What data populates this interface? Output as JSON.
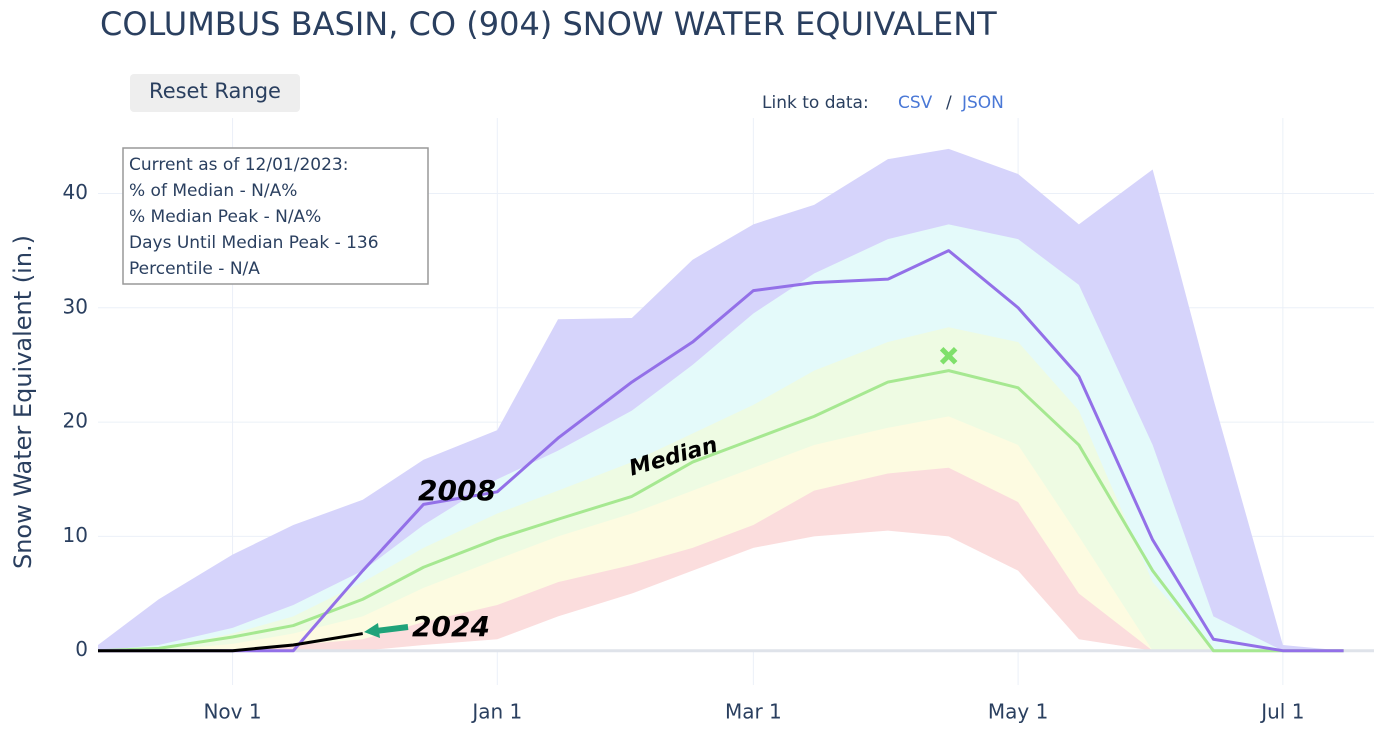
{
  "title": "COLUMBUS BASIN, CO (904) SNOW WATER EQUIVALENT",
  "button": "Reset Range",
  "links": {
    "label": "Link to data:",
    "csv": "CSV",
    "separator": "/",
    "json": "JSON"
  },
  "info_box": [
    "Current as of 12/01/2023:",
    "% of Median - N/A%",
    "% Median Peak - N/A%",
    "Days Until Median Peak - 136",
    "Percentile - N/A"
  ],
  "chart_data": {
    "type": "line",
    "y_label": "Snow Water Equivalent (in.)",
    "x": [
      "Oct 1",
      "Oct 15",
      "Nov 1",
      "Nov 15",
      "Dec 1",
      "Dec 15",
      "Jan 1",
      "Jan 15",
      "Feb 1",
      "Feb 15",
      "Mar 1",
      "Mar 15",
      "Apr 1",
      "Apr 15",
      "May 1",
      "May 15",
      "Jun 1",
      "Jun 15",
      "Jul 1",
      "Jul 15"
    ],
    "xlim": [
      "Oct 1",
      "Jul 22"
    ],
    "xticks": [
      "Nov 1",
      "Jan 1",
      "Mar 1",
      "May 1",
      "Jul 1"
    ],
    "ylim": [
      -3,
      46.6
    ],
    "yticks": [
      0,
      10,
      20,
      30,
      40
    ],
    "grid": true,
    "bands": [
      {
        "color": "#d6d4fb",
        "values": [
          0.5,
          4.5,
          8.4,
          11,
          13.2,
          16.7,
          19.3,
          29,
          29.1,
          34.2,
          37.3,
          39,
          43,
          43.9,
          41.7,
          37.3,
          42.1,
          22,
          0.5,
          0
        ]
      },
      {
        "color": "#e4fafa",
        "values": [
          0,
          0.5,
          2,
          4,
          7,
          11,
          15,
          17.5,
          21,
          25,
          29.5,
          33,
          36,
          37.3,
          36,
          32,
          18,
          3,
          0,
          0
        ]
      },
      {
        "color": "#eefbe3",
        "values": [
          0,
          0.2,
          1.5,
          3,
          6,
          9,
          12,
          14,
          16.5,
          19,
          21.5,
          24.5,
          27,
          28.3,
          27,
          21,
          6,
          0,
          0,
          0
        ]
      },
      {
        "color": "#fdfbe1",
        "values": [
          0,
          0,
          0.6,
          1.5,
          3,
          5.5,
          8,
          10,
          12,
          14,
          16,
          18,
          19.5,
          20.5,
          18,
          10,
          0,
          0,
          0,
          0
        ]
      },
      {
        "color": "#fbdddd",
        "values": [
          0,
          0,
          0,
          0.5,
          1,
          2.5,
          4,
          6,
          7.5,
          9,
          11,
          14,
          15.5,
          16,
          13,
          5,
          0,
          0,
          0,
          0
        ]
      },
      {
        "color": "#ffffff",
        "values": [
          0,
          0,
          0,
          0,
          0,
          0.5,
          1,
          3,
          5,
          7,
          9,
          10,
          10.5,
          10,
          7,
          1,
          0,
          0,
          0,
          0
        ]
      }
    ],
    "series": [
      {
        "color": "#a6e891",
        "values": [
          0,
          0.2,
          1.2,
          2.2,
          4.5,
          7.3,
          9.8,
          11.5,
          13.5,
          16.5,
          18.5,
          20.5,
          23.5,
          24.5,
          23,
          18,
          7,
          0,
          0,
          0
        ]
      },
      {
        "color": "#9370e8",
        "values": [
          0,
          0,
          0,
          0,
          7,
          12.8,
          13.9,
          18.6,
          23.5,
          27,
          31.5,
          32.2,
          32.5,
          35,
          30,
          24,
          9.7,
          1,
          0,
          0
        ]
      },
      {
        "color": "#000000",
        "values": [
          0,
          0,
          0,
          0.5,
          1.5,
          null,
          null,
          null,
          null,
          null,
          null,
          null,
          null,
          null,
          null,
          null,
          null,
          null,
          null,
          null
        ]
      }
    ],
    "peak": {
      "x": "Apr 15",
      "value": 25.8,
      "color": "#7fe06b"
    },
    "annotations": [
      "2008",
      "Median",
      "2024"
    ]
  }
}
